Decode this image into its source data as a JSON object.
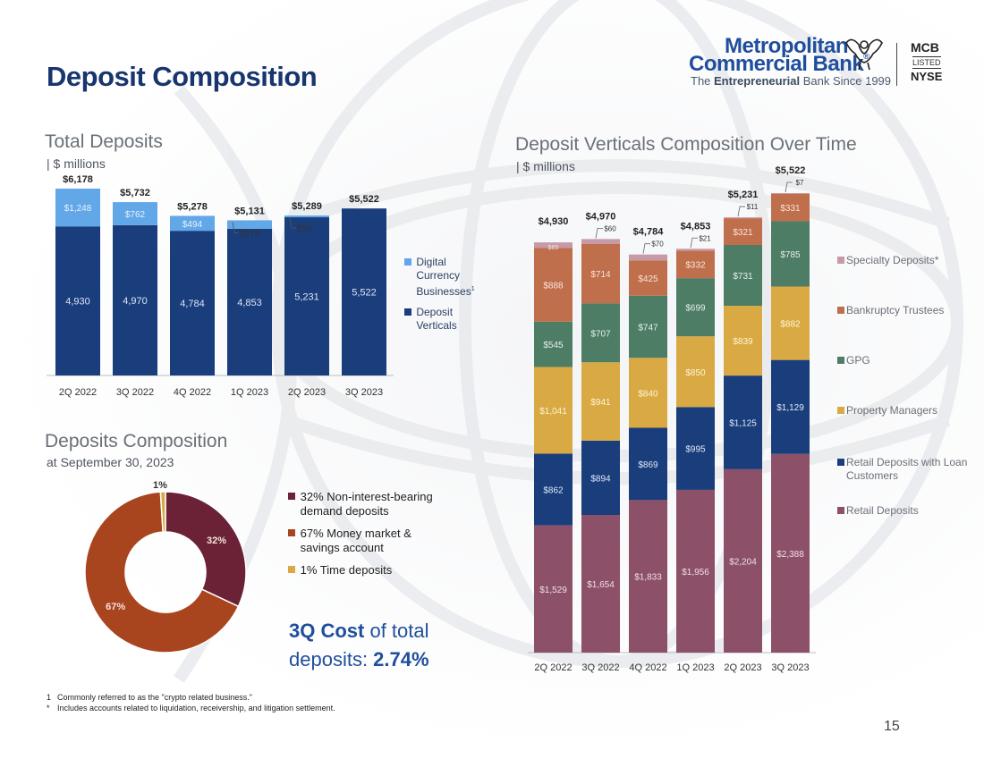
{
  "page": {
    "title": "Deposit Composition",
    "page_number": "15",
    "cost_line1_bold": "3Q Cost",
    "cost_line1_rest": " of total",
    "cost_line2_prefix": "deposits: ",
    "cost_line2_value": "2.74%",
    "footnotes": [
      {
        "mark": "1",
        "text": "Commonly referred to as the \"crypto related business.\""
      },
      {
        "mark": "*",
        "text": "Includes accounts related to liquidation, receivership, and litigation settlement."
      }
    ]
  },
  "logo": {
    "line1": "Metropolitan",
    "line2": "Commercial Bank",
    "reg": "®",
    "tag_pre": "The ",
    "tag_bold": "Entrepreneurial",
    "tag_post": " Bank Since 1999",
    "mcb": "MCB",
    "listed": "LISTED",
    "nyse": "NYSE"
  },
  "colors": {
    "navy": "#1a3d7c",
    "light_blue": "#62a8e8",
    "retail": "#8c5068",
    "property": "#d9aa43",
    "gpg": "#4e7d66",
    "bankruptcy": "#c06f4c",
    "specialty": "#c69aa7",
    "donut_nonint": "#6b2236",
    "donut_mm": "#a8451f",
    "donut_time": "#d9aa43"
  },
  "chart_data": [
    {
      "type": "bar",
      "stacked": true,
      "title": "Total Deposits",
      "subtitle": "| $ millions",
      "categories": [
        "2Q 2022",
        "3Q 2022",
        "4Q 2022",
        "1Q 2023",
        "2Q 2023",
        "3Q 2023"
      ],
      "series": [
        {
          "name": "Deposit Verticals",
          "values": [
            4930,
            4970,
            4784,
            4853,
            5231,
            5522
          ],
          "labels": [
            "4,930",
            "4,970",
            "4,784",
            "4,853",
            "5,231",
            "5,522"
          ]
        },
        {
          "name": "Digital Currency Businesses",
          "legend_lines": [
            "Digital",
            "Currency",
            "Businesses"
          ],
          "legend_sup": "1",
          "values": [
            1248,
            762,
            494,
            278,
            58,
            0
          ],
          "labels": [
            "$1,248",
            "$762",
            "$494",
            "$278",
            "$58",
            ""
          ]
        }
      ],
      "totals": [
        "$6,178",
        "$5,732",
        "$5,278",
        "$5,131",
        "$5,289",
        "$5,522"
      ],
      "legend_verticals": [
        "Deposit",
        "Verticals"
      ],
      "ylim": [
        0,
        6500
      ]
    },
    {
      "type": "pie",
      "donut": true,
      "title": "Deposits Composition",
      "subtitle_prefix": "at",
      "subtitle": " September 30, 2023",
      "slices": [
        {
          "name": "Non-interest-bearing demand deposits",
          "value": 32,
          "label": "32%",
          "legend": [
            "32% Non-interest-bearing",
            "demand deposits"
          ]
        },
        {
          "name": "Money market & savings account",
          "value": 67,
          "label": "67%",
          "legend": [
            "67% Money market &",
            "savings account"
          ]
        },
        {
          "name": "Time deposits",
          "value": 1,
          "label": "1%",
          "legend": [
            "1% Time deposits"
          ]
        }
      ]
    },
    {
      "type": "bar",
      "stacked": true,
      "title": "Deposit Verticals Composition Over Time",
      "subtitle": "| $ millions",
      "categories": [
        "2Q 2022",
        "3Q 2022",
        "4Q 2022",
        "1Q 2023",
        "2Q 2023",
        "3Q 2023"
      ],
      "series": [
        {
          "name": "Retail Deposits",
          "values": [
            1529,
            1654,
            1833,
            1956,
            2204,
            2388
          ],
          "labels": [
            "$1,529",
            "$1,654",
            "$1,833",
            "$1,956",
            "$2,204",
            "$2,388"
          ]
        },
        {
          "name": "Retail Deposits with Loan Customers",
          "legend_lines": [
            "Retail Deposits with Loan",
            "Customers"
          ],
          "values": [
            862,
            894,
            869,
            995,
            1125,
            1129
          ],
          "labels": [
            "$862",
            "$894",
            "$869",
            "$995",
            "$1,125",
            "$1,129"
          ]
        },
        {
          "name": "Property Managers",
          "values": [
            1041,
            941,
            840,
            850,
            839,
            882
          ],
          "labels": [
            "$1,041",
            "$941",
            "$840",
            "$850",
            "$839",
            "$882"
          ]
        },
        {
          "name": "GPG",
          "values": [
            545,
            707,
            747,
            699,
            731,
            785
          ],
          "labels": [
            "$545",
            "$707",
            "$747",
            "$699",
            "$731",
            "$785"
          ]
        },
        {
          "name": "Bankruptcy Trustees",
          "values": [
            888,
            714,
            425,
            332,
            321,
            331
          ],
          "labels": [
            "$888",
            "$714",
            "$425",
            "$332",
            "$321",
            "$331"
          ]
        },
        {
          "name": "Specialty Deposits*",
          "values": [
            65,
            60,
            70,
            21,
            11,
            7
          ],
          "labels": [
            "$65",
            "$60",
            "$70",
            "$21",
            "$11",
            "$7"
          ]
        }
      ],
      "totals": [
        "$4,930",
        "$4,970",
        "$4,784",
        "$4,853",
        "$5,231",
        "$5,522"
      ],
      "ylim": [
        0,
        5600
      ]
    }
  ]
}
